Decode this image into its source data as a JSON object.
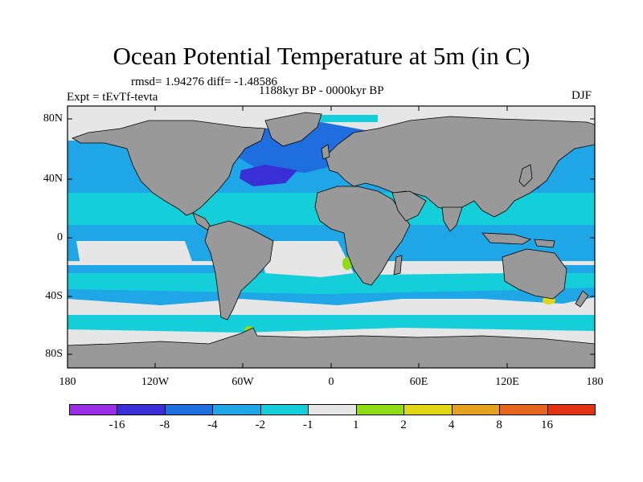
{
  "title": "Ocean Potential Temperature at 5m (in C)",
  "stats_text": "rmsd= 1.94276 diff= -1.48586",
  "left_text": "Expt = tEvTf-tevta",
  "center_text": "1188kyr BP - 0000kyr BP",
  "right_text": "DJF",
  "y_ticks": [
    "80N",
    "40N",
    "0",
    "40S",
    "80S"
  ],
  "x_ticks": [
    "180",
    "120W",
    "60W",
    "0",
    "60E",
    "120E",
    "180"
  ],
  "colorbar": {
    "colors": [
      "#9a2ee6",
      "#3a2ed6",
      "#1e6ee0",
      "#1ea6e6",
      "#14cfd9",
      "#e6e6e6",
      "#8fdb14",
      "#e0d614",
      "#e6a21e",
      "#e6641e",
      "#e23214"
    ],
    "labels": [
      "-16",
      "-8",
      "-4",
      "-2",
      "-1",
      "1",
      "2",
      "4",
      "8",
      "16"
    ]
  },
  "colors": {
    "land": "#999999",
    "near_zero": "#e6e6e6",
    "cool_light": "#14cfd9",
    "cool": "#1ea6e6",
    "cold": "#1e6ee0",
    "very_cold": "#3a2ed6",
    "warm": "#8fdb14"
  }
}
